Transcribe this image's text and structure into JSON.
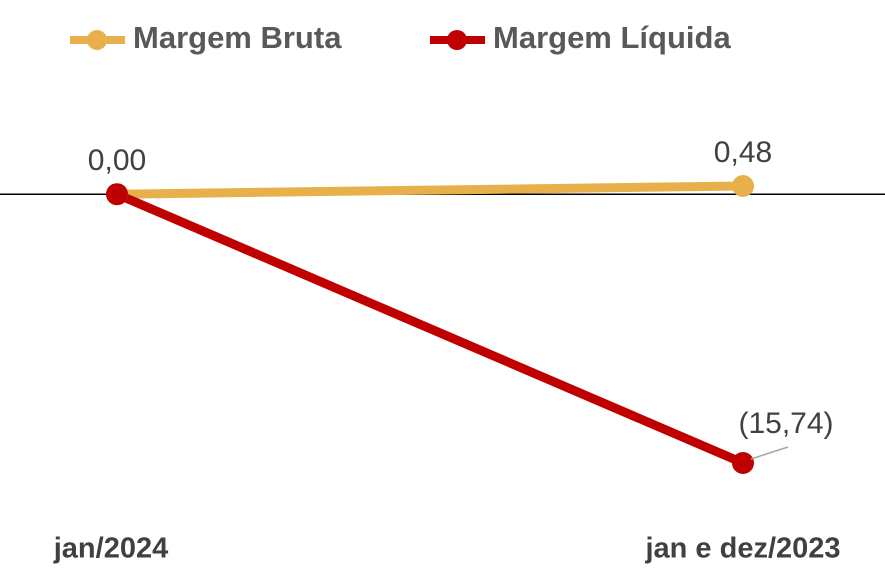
{
  "chart_data": {
    "type": "line",
    "categories": [
      "jan/2024",
      "jan e dez/2023"
    ],
    "series": [
      {
        "name": "Margem Bruta",
        "color": "#E8B04A",
        "values": [
          0.0,
          0.48
        ],
        "value_labels": [
          "0,00",
          "0,48"
        ]
      },
      {
        "name": "Margem Líquida",
        "color": "#C00000",
        "values": [
          0.0,
          -15.74
        ],
        "value_labels": [
          null,
          "(15,74)"
        ]
      }
    ],
    "legend": "top"
  }
}
